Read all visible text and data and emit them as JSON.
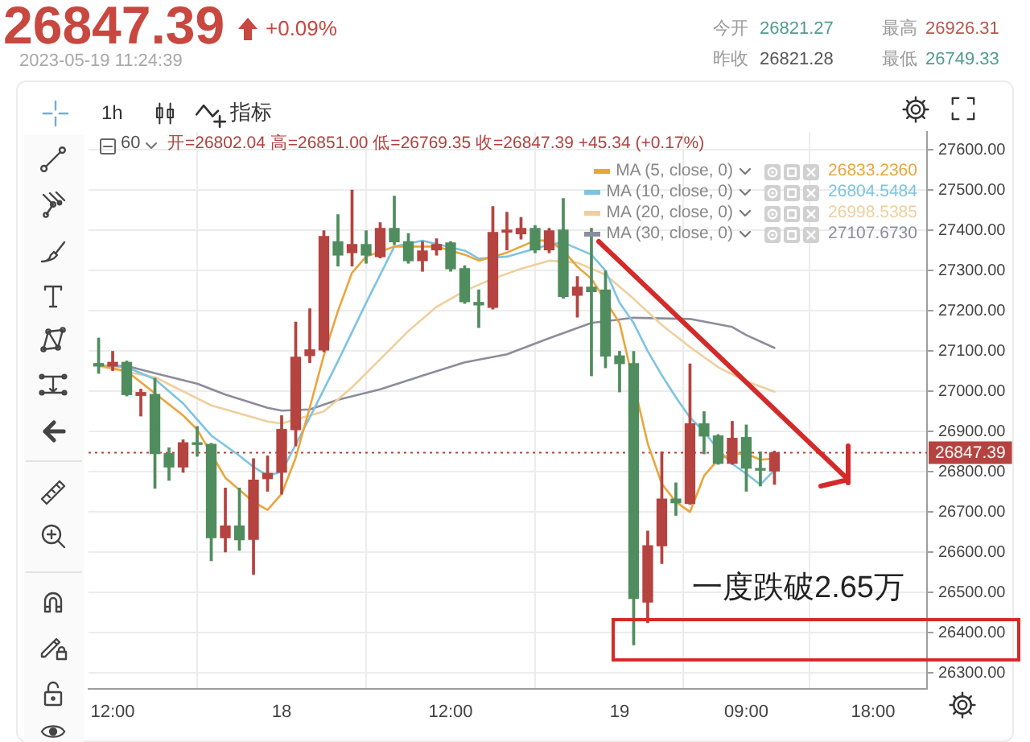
{
  "chart_data": {
    "type": "candlestick",
    "x": [
      "2023-05-17T11:00",
      "2023-05-17T12:00",
      "2023-05-17T13:00",
      "2023-05-17T14:00",
      "2023-05-17T15:00",
      "2023-05-17T16:00",
      "2023-05-17T17:00",
      "2023-05-17T18:00",
      "2023-05-17T19:00",
      "2023-05-17T20:00",
      "2023-05-17T21:00",
      "2023-05-17T22:00",
      "2023-05-17T23:00",
      "2023-05-18T00:00",
      "2023-05-18T01:00",
      "2023-05-18T02:00",
      "2023-05-18T03:00",
      "2023-05-18T04:00",
      "2023-05-18T05:00",
      "2023-05-18T06:00",
      "2023-05-18T07:00",
      "2023-05-18T08:00",
      "2023-05-18T09:00",
      "2023-05-18T10:00",
      "2023-05-18T11:00",
      "2023-05-18T12:00",
      "2023-05-18T13:00",
      "2023-05-18T14:00",
      "2023-05-18T15:00",
      "2023-05-18T16:00",
      "2023-05-18T17:00",
      "2023-05-18T18:00",
      "2023-05-18T19:00",
      "2023-05-18T20:00",
      "2023-05-18T21:00",
      "2023-05-18T22:00",
      "2023-05-18T23:00",
      "2023-05-19T00:00",
      "2023-05-19T01:00",
      "2023-05-19T02:00",
      "2023-05-19T03:00",
      "2023-05-19T04:00",
      "2023-05-19T05:00",
      "2023-05-19T06:00",
      "2023-05-19T07:00",
      "2023-05-19T08:00",
      "2023-05-19T09:00",
      "2023-05-19T10:00",
      "2023-05-19T11:00"
    ],
    "ohlc": [
      [
        27069,
        27132,
        27045,
        27063
      ],
      [
        27063,
        27099,
        27052,
        27072
      ],
      [
        27072,
        27075,
        26989,
        26992
      ],
      [
        26990,
        27005,
        26939,
        26997
      ],
      [
        26992,
        27032,
        26759,
        26845
      ],
      [
        26845,
        26859,
        26779,
        26812
      ],
      [
        26812,
        26879,
        26799,
        26872
      ],
      [
        26872,
        26912,
        26839,
        26868
      ],
      [
        26868,
        26870,
        26579,
        26636
      ],
      [
        26636,
        26759,
        26601,
        26665
      ],
      [
        26665,
        26759,
        26605,
        26631
      ],
      [
        26632,
        26832,
        26545,
        26779
      ],
      [
        26783,
        26839,
        26752,
        26796
      ],
      [
        26799,
        26939,
        26745,
        26905
      ],
      [
        26905,
        27172,
        26865,
        27085
      ],
      [
        27089,
        27205,
        27072,
        27103
      ],
      [
        27103,
        27399,
        27099,
        27385
      ],
      [
        27372,
        27439,
        27312,
        27339
      ],
      [
        27345,
        27500,
        27312,
        27365
      ],
      [
        27365,
        27399,
        27319,
        27339
      ],
      [
        27335,
        27419,
        27332,
        27405
      ],
      [
        27405,
        27485,
        27365,
        27372
      ],
      [
        27372,
        27392,
        27319,
        27325
      ],
      [
        27325,
        27372,
        27299,
        27349
      ],
      [
        27352,
        27379,
        27339,
        27365
      ],
      [
        27369,
        27372,
        27299,
        27305
      ],
      [
        27305,
        27312,
        27219,
        27223
      ],
      [
        27221,
        27252,
        27159,
        27215
      ],
      [
        27209,
        27459,
        27205,
        27395
      ],
      [
        27396,
        27445,
        27352,
        27401
      ],
      [
        27392,
        27432,
        27379,
        27405
      ],
      [
        27405,
        27412,
        27345,
        27352
      ],
      [
        27352,
        27405,
        27345,
        27399
      ],
      [
        27401,
        27479,
        27232,
        27236
      ],
      [
        27239,
        27285,
        27185,
        27259
      ],
      [
        27259,
        27405,
        27039,
        27248
      ],
      [
        27252,
        27299,
        27059,
        27088
      ],
      [
        27088,
        27099,
        26999,
        27069
      ],
      [
        27069,
        27099,
        26370,
        26485
      ],
      [
        26476,
        26652,
        26425,
        26616
      ],
      [
        26616,
        26849,
        26572,
        26732
      ],
      [
        26732,
        26772,
        26692,
        26723
      ],
      [
        26721,
        27068,
        26719,
        26919
      ],
      [
        26919,
        26949,
        26845,
        26889
      ],
      [
        26889,
        26892,
        26819,
        26821
      ],
      [
        26821,
        26925,
        26819,
        26883
      ],
      [
        26885,
        26916,
        26752,
        26809
      ],
      [
        26808,
        26849,
        26765,
        26804
      ],
      [
        26802,
        26851,
        26769,
        26847
      ]
    ],
    "colors": [
      "#4f8d5e",
      "#b5433f",
      "#4f8d5e",
      "#b5433f",
      "#4f8d5e",
      "#4f8d5e",
      "#b5433f",
      "#4f8d5e",
      "#4f8d5e",
      "#b5433f",
      "#4f8d5e",
      "#b5433f",
      "#b5433f",
      "#b5433f",
      "#b5433f",
      "#b5433f",
      "#b5433f",
      "#4f8d5e",
      "#b5433f",
      "#4f8d5e",
      "#b5433f",
      "#4f8d5e",
      "#4f8d5e",
      "#b5433f",
      "#b5433f",
      "#4f8d5e",
      "#4f8d5e",
      "#4f8d5e",
      "#b5433f",
      "#b5433f",
      "#b5433f",
      "#4f8d5e",
      "#b5433f",
      "#4f8d5e",
      "#b5433f",
      "#4f8d5e",
      "#4f8d5e",
      "#4f8d5e",
      "#4f8d5e",
      "#b5433f",
      "#b5433f",
      "#4f8d5e",
      "#b5433f",
      "#4f8d5e",
      "#4f8d5e",
      "#b5433f",
      "#4f8d5e",
      "#4f8d5e",
      "#b5433f"
    ],
    "series": [
      {
        "name": "MA (5, close, 0)",
        "type": "line",
        "color": "#eaa53c",
        "x": [
          "2023-05-17T11:00",
          "2023-05-17T13:00",
          "2023-05-17T15:00",
          "2023-05-17T17:00",
          "2023-05-17T18:00",
          "2023-05-17T20:00",
          "2023-05-17T21:00",
          "2023-05-17T22:00",
          "2023-05-17T23:00",
          "2023-05-18T00:00",
          "2023-05-18T01:00",
          "2023-05-18T02:00",
          "2023-05-18T03:00",
          "2023-05-18T04:00",
          "2023-05-18T05:00",
          "2023-05-18T06:00",
          "2023-05-18T08:00",
          "2023-05-18T11:00",
          "2023-05-18T13:00",
          "2023-05-18T14:00",
          "2023-05-18T16:00",
          "2023-05-18T18:00",
          "2023-05-18T19:00",
          "2023-05-18T20:00",
          "2023-05-18T21:00",
          "2023-05-18T22:00",
          "2023-05-19T00:00",
          "2023-05-19T02:00",
          "2023-05-19T03:00",
          "2023-05-19T04:00",
          "2023-05-19T05:00",
          "2023-05-19T06:00",
          "2023-05-19T07:00",
          "2023-05-19T08:00",
          "2023-05-19T09:00",
          "2023-05-19T10:00",
          "2023-05-19T11:00"
        ],
        "values": [
          27065,
          27050,
          26995,
          26940,
          26905,
          26785,
          26755,
          26725,
          26705,
          26745,
          26835,
          26960,
          27090,
          27200,
          27295,
          27335,
          27360,
          27360,
          27340,
          27325,
          27345,
          27375,
          27375,
          27350,
          27310,
          27280,
          27170,
          26870,
          26770,
          26725,
          26700,
          26790,
          26830,
          26845,
          26845,
          26830,
          26833
        ]
      },
      {
        "name": "MA (10, close, 0)",
        "type": "line",
        "color": "#7dc4e0",
        "x": [
          "2023-05-17T11:00",
          "2023-05-17T13:00",
          "2023-05-17T15:00",
          "2023-05-17T17:00",
          "2023-05-17T19:00",
          "2023-05-17T21:00",
          "2023-05-17T22:00",
          "2023-05-17T23:00",
          "2023-05-18T00:00",
          "2023-05-18T02:00",
          "2023-05-18T04:00",
          "2023-05-18T06:00",
          "2023-05-18T08:00",
          "2023-05-18T10:00",
          "2023-05-18T13:00",
          "2023-05-18T14:00",
          "2023-05-18T16:00",
          "2023-05-18T19:00",
          "2023-05-18T20:00",
          "2023-05-18T22:00",
          "2023-05-18T23:00",
          "2023-05-19T00:00",
          "2023-05-19T01:00",
          "2023-05-19T02:00",
          "2023-05-19T03:00",
          "2023-05-19T04:00",
          "2023-05-19T05:00",
          "2023-05-19T06:00",
          "2023-05-19T07:00",
          "2023-05-19T08:00",
          "2023-05-19T09:00",
          "2023-05-19T10:00",
          "2023-05-19T11:00"
        ],
        "values": [
          27065,
          27060,
          27030,
          26970,
          26890,
          26840,
          26812,
          26790,
          26800,
          26935,
          27075,
          27220,
          27360,
          27375,
          27350,
          27330,
          27335,
          27365,
          27370,
          27340,
          27300,
          27220,
          27170,
          27100,
          27040,
          26985,
          26935,
          26900,
          26855,
          26820,
          26795,
          26768,
          26804
        ]
      },
      {
        "name": "MA (20, close, 0)",
        "type": "line",
        "color": "#efcf9c",
        "x": [
          "2023-05-17T11:00",
          "2023-05-17T15:00",
          "2023-05-17T19:00",
          "2023-05-17T23:00",
          "2023-05-18T00:00",
          "2023-05-18T03:00",
          "2023-05-18T05:00",
          "2023-05-18T07:00",
          "2023-05-18T09:00",
          "2023-05-18T11:00",
          "2023-05-18T13:00",
          "2023-05-18T15:00",
          "2023-05-18T17:00",
          "2023-05-18T19:00",
          "2023-05-18T21:00",
          "2023-05-18T23:00",
          "2023-05-19T01:00",
          "2023-05-19T03:00",
          "2023-05-19T05:00",
          "2023-05-19T07:00",
          "2023-05-19T09:00",
          "2023-05-19T11:00"
        ],
        "values": [
          27062,
          27035,
          26965,
          26925,
          26920,
          26950,
          27010,
          27080,
          27150,
          27210,
          27250,
          27280,
          27305,
          27325,
          27320,
          27290,
          27230,
          27165,
          27110,
          27060,
          27025,
          26999
        ]
      },
      {
        "name": "MA (30, close, 0)",
        "type": "line",
        "color": "#8c8c9c",
        "x": [
          "2023-05-17T11:00",
          "2023-05-17T13:00",
          "2023-05-17T15:00",
          "2023-05-17T18:00",
          "2023-05-17T20:00",
          "2023-05-17T23:00",
          "2023-05-18T00:00",
          "2023-05-18T02:00",
          "2023-05-18T04:00",
          "2023-05-18T07:00",
          "2023-05-18T10:00",
          "2023-05-18T13:00",
          "2023-05-18T16:00",
          "2023-05-18T19:00",
          "2023-05-18T22:00",
          "2023-05-19T01:00",
          "2023-05-19T05:00",
          "2023-05-19T08:00",
          "2023-05-19T09:00",
          "2023-05-19T11:00"
        ],
        "values": [
          27063,
          27063,
          27045,
          27019,
          26992,
          26959,
          26952,
          26955,
          26979,
          27005,
          27039,
          27072,
          27092,
          27132,
          27170,
          27183,
          27180,
          27160,
          27140,
          27108
        ]
      }
    ],
    "xlim": [
      "2023-05-17T10:17",
      "2023-05-19T21:50"
    ],
    "xticks": [
      {
        "value": "2023-05-17T12:00",
        "label": "12:00"
      },
      {
        "value": "2023-05-18T00:00",
        "label": "18"
      },
      {
        "value": "2023-05-18T12:00",
        "label": "12:00"
      },
      {
        "value": "2023-05-19T00:00",
        "label": "19"
      },
      {
        "value": "2023-05-19T09:00",
        "label": "09:00"
      },
      {
        "value": "2023-05-19T18:00",
        "label": "18:00"
      }
    ],
    "ylim": [
      26260,
      27645
    ],
    "yticks": [
      {
        "value": 26300,
        "label": "26300.00"
      },
      {
        "value": 26400,
        "label": "26400.00"
      },
      {
        "value": 26500,
        "label": "26500.00"
      },
      {
        "value": 26600,
        "label": "26600.00"
      },
      {
        "value": 26700,
        "label": "26700.00"
      },
      {
        "value": 26800,
        "label": "26800.00"
      },
      {
        "value": 26900,
        "label": "26900.00"
      },
      {
        "value": 27000,
        "label": "27000.00"
      },
      {
        "value": 27100,
        "label": "27100.00"
      },
      {
        "value": 27200,
        "label": "27200.00"
      },
      {
        "value": 27300,
        "label": "27300.00"
      },
      {
        "value": 27400,
        "label": "27400.00"
      },
      {
        "value": 27500,
        "label": "27500.00"
      },
      {
        "value": 27600,
        "label": "27600.00"
      }
    ],
    "ref_lines": [
      {
        "axis": "y",
        "value": 26847.39,
        "label": "26847.39",
        "color": "#b5433f",
        "line_style": "dotted"
      }
    ],
    "grid": true,
    "legend": "top right",
    "marker": "none",
    "annotations": [
      "26847.39",
      "+0.09%",
      "2023-05-19 11:24:39",
      "今开",
      "26821.27",
      "最高",
      "26926.31",
      "昨收",
      "26821.28",
      "最低",
      "26749.33",
      "1h",
      "指标",
      "60",
      "开=26802.04 高=26851.00 低=26769.35 收=26847.39 +45.34 (+0.17%)",
      "26833.2360",
      "26804.5484",
      "26998.5385",
      "27107.6730",
      "一度跌破2.65万"
    ]
  }
}
